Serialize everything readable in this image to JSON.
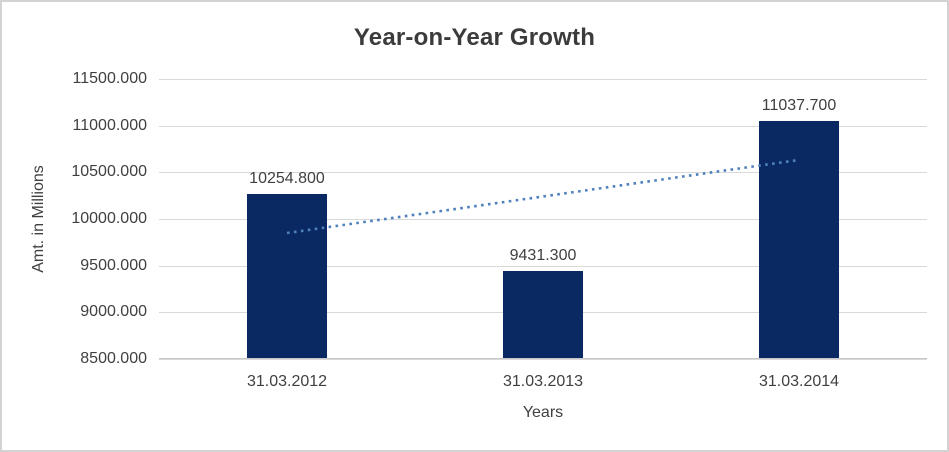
{
  "chart_data": {
    "type": "bar",
    "title": "Year-on-Year Growth",
    "xlabel": "Years",
    "ylabel": "Amt. in Millions",
    "categories": [
      "31.03.2012",
      "31.03.2013",
      "31.03.2014"
    ],
    "values": [
      10254.8,
      9431.3,
      11037.7
    ],
    "value_labels": [
      "10254.800",
      "9431.300",
      "11037.700"
    ],
    "ylim": [
      8500,
      11500
    ],
    "ytick_step": 500,
    "yticks": [
      {
        "value": 8500,
        "label": "8500.000"
      },
      {
        "value": 9000,
        "label": "9000.000"
      },
      {
        "value": 9500,
        "label": "9500.000"
      },
      {
        "value": 10000,
        "label": "10000.000"
      },
      {
        "value": 10500,
        "label": "10500.000"
      },
      {
        "value": 11000,
        "label": "11000.000"
      },
      {
        "value": 11500,
        "label": "11500.000"
      }
    ],
    "grid": true,
    "legend_position": "none",
    "bar_color": "#0a2862",
    "trendline": {
      "type": "linear",
      "style": "dotted",
      "color": "#4f81bd"
    }
  }
}
